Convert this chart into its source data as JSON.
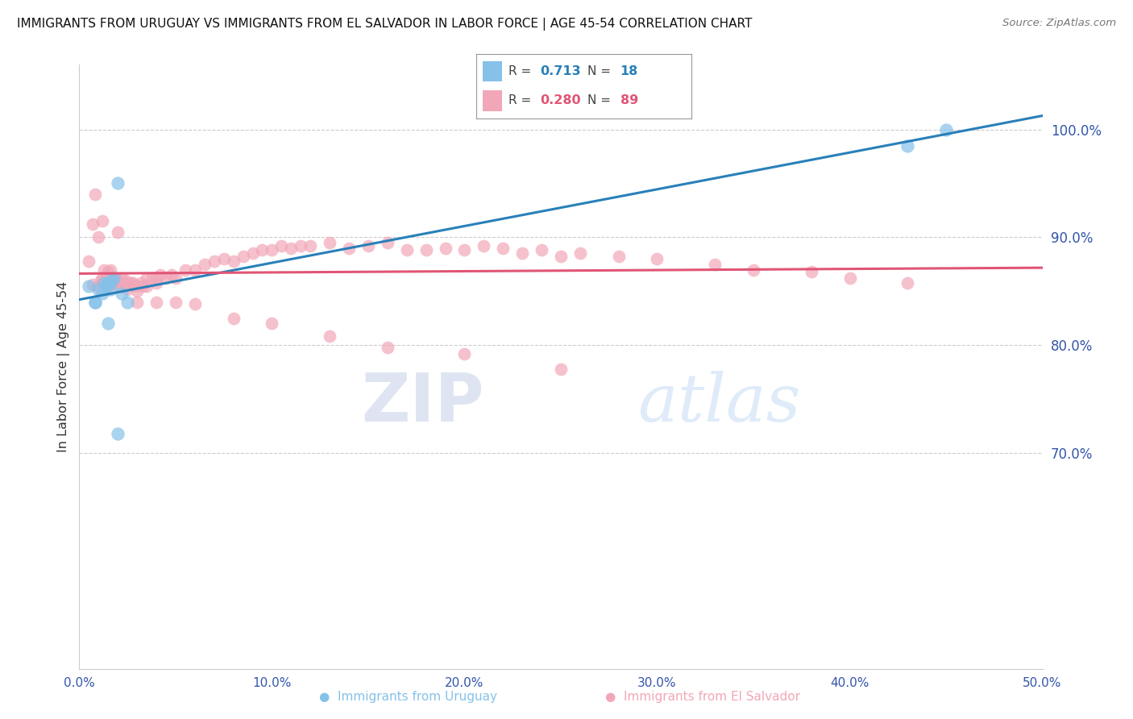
{
  "title": "IMMIGRANTS FROM URUGUAY VS IMMIGRANTS FROM EL SALVADOR IN LABOR FORCE | AGE 45-54 CORRELATION CHART",
  "source": "Source: ZipAtlas.com",
  "ylabel": "In Labor Force | Age 45-54",
  "xmin": 0.0,
  "xmax": 0.5,
  "ymin": 0.5,
  "ymax": 1.06,
  "yticks": [
    0.7,
    0.8,
    0.9,
    1.0
  ],
  "ytick_labels": [
    "70.0%",
    "80.0%",
    "90.0%",
    "100.0%"
  ],
  "xticks": [
    0.0,
    0.1,
    0.2,
    0.3,
    0.4,
    0.5
  ],
  "xtick_labels": [
    "0.0%",
    "10.0%",
    "20.0%",
    "30.0%",
    "40.0%",
    "50.0%"
  ],
  "legend_R_uruguay": "0.713",
  "legend_N_uruguay": "18",
  "legend_R_salvador": "0.280",
  "legend_N_salvador": "89",
  "color_uruguay": "#85c1e9",
  "color_salvador": "#f1a7b8",
  "line_color_uruguay": "#2980b9",
  "line_color_salvador": "#e05575",
  "uru_x": [
    0.005,
    0.008,
    0.01,
    0.012,
    0.013,
    0.014,
    0.015,
    0.016,
    0.017,
    0.018,
    0.02,
    0.022,
    0.008,
    0.015,
    0.025,
    0.02,
    0.43,
    0.45
  ],
  "uru_y": [
    0.855,
    0.84,
    0.852,
    0.848,
    0.858,
    0.855,
    0.858,
    0.852,
    0.86,
    0.862,
    0.95,
    0.848,
    0.84,
    0.82,
    0.84,
    0.718,
    0.985,
    1.0
  ],
  "sal_x": [
    0.005,
    0.007,
    0.008,
    0.01,
    0.01,
    0.011,
    0.012,
    0.013,
    0.013,
    0.014,
    0.015,
    0.015,
    0.016,
    0.016,
    0.017,
    0.018,
    0.018,
    0.019,
    0.02,
    0.02,
    0.021,
    0.022,
    0.023,
    0.024,
    0.025,
    0.026,
    0.027,
    0.028,
    0.03,
    0.03,
    0.032,
    0.033,
    0.035,
    0.035,
    0.038,
    0.04,
    0.04,
    0.042,
    0.045,
    0.048,
    0.05,
    0.055,
    0.06,
    0.065,
    0.07,
    0.075,
    0.08,
    0.085,
    0.09,
    0.095,
    0.1,
    0.105,
    0.11,
    0.115,
    0.12,
    0.13,
    0.14,
    0.15,
    0.16,
    0.17,
    0.18,
    0.19,
    0.2,
    0.21,
    0.22,
    0.23,
    0.24,
    0.25,
    0.26,
    0.28,
    0.3,
    0.33,
    0.35,
    0.38,
    0.4,
    0.43,
    0.05,
    0.06,
    0.08,
    0.1,
    0.13,
    0.16,
    0.2,
    0.25,
    0.007,
    0.012,
    0.02,
    0.03,
    0.04
  ],
  "sal_y": [
    0.878,
    0.856,
    0.94,
    0.855,
    0.9,
    0.86,
    0.862,
    0.87,
    0.858,
    0.862,
    0.868,
    0.855,
    0.87,
    0.858,
    0.862,
    0.86,
    0.858,
    0.862,
    0.86,
    0.856,
    0.858,
    0.862,
    0.858,
    0.86,
    0.852,
    0.856,
    0.858,
    0.858,
    0.855,
    0.85,
    0.858,
    0.855,
    0.862,
    0.855,
    0.862,
    0.862,
    0.858,
    0.865,
    0.862,
    0.865,
    0.862,
    0.87,
    0.87,
    0.875,
    0.878,
    0.88,
    0.878,
    0.882,
    0.885,
    0.888,
    0.888,
    0.892,
    0.89,
    0.892,
    0.892,
    0.895,
    0.89,
    0.892,
    0.895,
    0.888,
    0.888,
    0.89,
    0.888,
    0.892,
    0.89,
    0.885,
    0.888,
    0.882,
    0.885,
    0.882,
    0.88,
    0.875,
    0.87,
    0.868,
    0.862,
    0.858,
    0.84,
    0.838,
    0.825,
    0.82,
    0.808,
    0.798,
    0.792,
    0.778,
    0.912,
    0.915,
    0.905,
    0.84,
    0.84
  ]
}
